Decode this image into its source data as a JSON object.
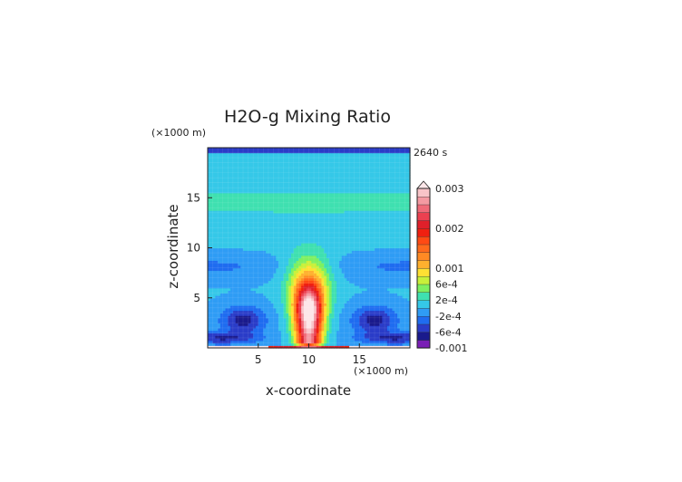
{
  "chart_data": {
    "type": "heatmap",
    "title": "H2O-g Mixing Ratio",
    "xlabel": "x-coordinate",
    "ylabel": "z-coordinate",
    "x_unit": "(×1000 m)",
    "y_unit": "(×1000 m)",
    "time_label": "2640 s",
    "xlim": [
      0,
      20
    ],
    "ylim": [
      0,
      20
    ],
    "x_ticks": [
      "5",
      "10",
      "15"
    ],
    "y_ticks": [
      "5",
      "10",
      "15"
    ],
    "colorbar": {
      "labels": [
        "0.003",
        "0.002",
        "0.001",
        "6e-4",
        "2e-4",
        "-2e-4",
        "-6e-4",
        "-0.001"
      ],
      "levels": [
        -0.001,
        -0.0008,
        -0.0006,
        -0.0004,
        -0.0002,
        0,
        0.0002,
        0.0004,
        0.0006,
        0.0008,
        0.001,
        0.0012,
        0.0014,
        0.0016,
        0.0018,
        0.002,
        0.0022,
        0.0024,
        0.0026,
        0.0028,
        0.003
      ],
      "extend": "max"
    },
    "colors": {
      "scale": [
        "#7a1fb5",
        "#1a1a8c",
        "#2a3cc8",
        "#1f6cf0",
        "#2f9cf5",
        "#35c8e8",
        "#3fe0b0",
        "#7ef060",
        "#c8f03a",
        "#ffe033",
        "#ffb02e",
        "#ff8a24",
        "#ff6a1c",
        "#ff4a14",
        "#f02010",
        "#e0202a",
        "#ec4050",
        "#f06a78",
        "#f49aa2",
        "#f8c4c8",
        "#fde6e8"
      ],
      "background": "#ffffff"
    }
  }
}
